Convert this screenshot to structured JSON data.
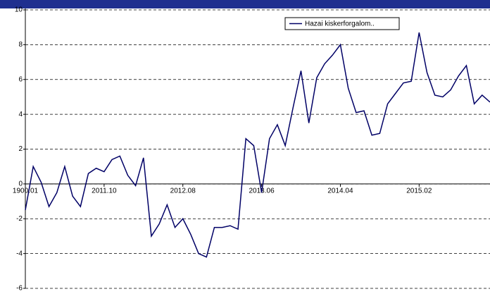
{
  "chart_data": {
    "type": "line",
    "categories": [
      "1900.01",
      null,
      null,
      null,
      null,
      null,
      null,
      null,
      null,
      null,
      "2011.10",
      null,
      null,
      null,
      null,
      null,
      null,
      null,
      null,
      null,
      "2012.08",
      null,
      null,
      null,
      null,
      null,
      null,
      null,
      null,
      null,
      "2013.06",
      null,
      null,
      null,
      null,
      null,
      null,
      null,
      null,
      null,
      "2014.04",
      null,
      null,
      null,
      null,
      null,
      null,
      null,
      null,
      null,
      "2015.02",
      null,
      null,
      null,
      null,
      null,
      null,
      null,
      null,
      null
    ],
    "series": [
      {
        "name": "Hazai kiskerforgalom..",
        "color": "#000066",
        "values": [
          -1.5,
          1.0,
          0.1,
          -1.3,
          -0.5,
          1.0,
          -0.7,
          -1.3,
          0.6,
          0.9,
          0.7,
          1.4,
          1.6,
          0.5,
          -0.1,
          1.5,
          -3.0,
          -2.3,
          -1.2,
          -2.5,
          -2.0,
          -2.9,
          -4.0,
          -4.2,
          -2.5,
          -2.5,
          -2.4,
          -2.6,
          2.6,
          2.2,
          -0.5,
          2.6,
          3.4,
          2.2,
          4.4,
          6.5,
          3.5,
          6.1,
          6.9,
          7.4,
          8.0,
          5.5,
          4.1,
          4.2,
          2.8,
          2.9,
          4.6,
          5.2,
          5.8,
          5.9,
          8.7,
          6.4,
          5.1,
          5.0,
          5.4,
          6.2,
          6.8,
          4.6,
          5.1,
          4.7
        ]
      }
    ],
    "ylim": [
      -6,
      10
    ],
    "yticks": [
      -6,
      -4,
      -2,
      0,
      2,
      4,
      6,
      8,
      10
    ],
    "grid": true,
    "legend": "top-right"
  }
}
